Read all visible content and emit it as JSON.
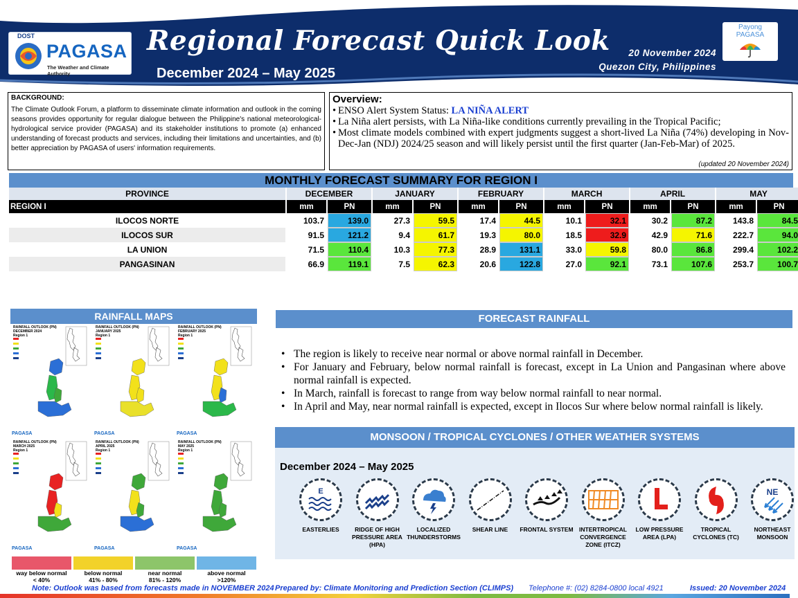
{
  "header": {
    "dost": "DOST",
    "agency": "PAGASA",
    "agency_tagline": "The Weather and Climate Authority",
    "title": "Regional Forecast Quick Look",
    "period": "December 2024 – May 2025",
    "date": "20 November 2024",
    "place": "Quezon City, Philippines",
    "payong_line1": "Payong",
    "payong_line2": "PAGASA"
  },
  "background": {
    "title": "BACKGROUND:",
    "text": "The Climate Outlook Forum, a platform to disseminate climate information and outlook in the coming seasons provides opportunity for regular dialogue between the Philippine's national meteorological-hydrological service provider (PAGASA) and its stakeholder institutions to promote (a) enhanced understanding of forecast products and services, including their limitations and uncertainties, and (b) better appreciation by PAGASA of users' information requirements."
  },
  "overview": {
    "title": "Overview:",
    "enso_label": "ENSO Alert System Status: ",
    "enso_status": "LA NIÑA ALERT",
    "item2": "La Niña alert persists, with La Niña-like conditions currently prevailing in the Tropical Pacific;",
    "item3": "Most climate models combined with expert judgments suggest a short-lived La Niña (74%) developing in Nov-Dec-Jan (NDJ) 2024/25 season and will likely persist until the first quarter (Jan-Feb-Mar) of 2025.",
    "updated": "(updated 20 November 2024)"
  },
  "summary": {
    "title": "MONTHLY FORECAST SUMMARY FOR REGION I",
    "province_header": "PROVINCE",
    "region_label": "REGION I",
    "mm_label": "mm",
    "pn_label": "PN",
    "months": [
      "DECEMBER",
      "JANUARY",
      "FEBRUARY",
      "MARCH",
      "APRIL",
      "MAY"
    ],
    "rows": [
      {
        "province": "ILOCOS NORTE",
        "cells": [
          {
            "mm": "103.7",
            "pn": "139.0",
            "color": "#29a8e0"
          },
          {
            "mm": "27.3",
            "pn": "59.5",
            "color": "#f5f500"
          },
          {
            "mm": "17.4",
            "pn": "44.5",
            "color": "#f5f500"
          },
          {
            "mm": "10.1",
            "pn": "32.1",
            "color": "#ee1c1c"
          },
          {
            "mm": "30.2",
            "pn": "87.2",
            "color": "#5ae63c"
          },
          {
            "mm": "143.8",
            "pn": "84.5",
            "color": "#5ae63c"
          }
        ]
      },
      {
        "province": "ILOCOS SUR",
        "cells": [
          {
            "mm": "91.5",
            "pn": "121.2",
            "color": "#29a8e0"
          },
          {
            "mm": "9.4",
            "pn": "61.7",
            "color": "#f5f500"
          },
          {
            "mm": "19.3",
            "pn": "80.0",
            "color": "#f5f500"
          },
          {
            "mm": "18.5",
            "pn": "32.9",
            "color": "#ee1c1c"
          },
          {
            "mm": "42.9",
            "pn": "71.6",
            "color": "#f5f500"
          },
          {
            "mm": "222.7",
            "pn": "94.0",
            "color": "#5ae63c"
          }
        ]
      },
      {
        "province": "LA UNION",
        "cells": [
          {
            "mm": "71.5",
            "pn": "110.4",
            "color": "#5ae63c"
          },
          {
            "mm": "10.3",
            "pn": "77.3",
            "color": "#f5f500"
          },
          {
            "mm": "28.9",
            "pn": "131.1",
            "color": "#29a8e0"
          },
          {
            "mm": "33.0",
            "pn": "59.8",
            "color": "#f5f500"
          },
          {
            "mm": "80.0",
            "pn": "86.8",
            "color": "#5ae63c"
          },
          {
            "mm": "299.4",
            "pn": "102.2",
            "color": "#5ae63c"
          }
        ]
      },
      {
        "province": "PANGASINAN",
        "cells": [
          {
            "mm": "66.9",
            "pn": "119.1",
            "color": "#5ae63c"
          },
          {
            "mm": "7.5",
            "pn": "62.3",
            "color": "#f5f500"
          },
          {
            "mm": "20.6",
            "pn": "122.8",
            "color": "#29a8e0"
          },
          {
            "mm": "27.0",
            "pn": "92.1",
            "color": "#5ae63c"
          },
          {
            "mm": "73.1",
            "pn": "107.6",
            "color": "#5ae63c"
          },
          {
            "mm": "253.7",
            "pn": "100.7",
            "color": "#5ae63c"
          }
        ]
      }
    ]
  },
  "maps": {
    "title": "RAINFALL MAPS",
    "panels": [
      {
        "title": "RAINFALL OUTLOOK (PN)\nDECEMBER 2024\nRegion 1",
        "palette": [
          "#2b6fd6",
          "#2bb84a",
          "#3fa83a",
          "#2b6fd6"
        ]
      },
      {
        "title": "RAINFALL OUTLOOK (PN)\nJANUARY 2025\nRegion 1",
        "palette": [
          "#f2e11b",
          "#f2e11b",
          "#f2e11b",
          "#e9e02a"
        ]
      },
      {
        "title": "RAINFALL OUTLOOK (PN)\nFEBRUARY 2025\nRegion 1",
        "palette": [
          "#f2e11b",
          "#f2e11b",
          "#2b6fd6",
          "#2bb84a"
        ]
      },
      {
        "title": "RAINFALL OUTLOOK (PN)\nMARCH 2025\nRegion 1",
        "palette": [
          "#e82222",
          "#e82222",
          "#f2e11b",
          "#3fa83a"
        ]
      },
      {
        "title": "RAINFALL OUTLOOK (PN)\nAPRIL 2025\nRegion 1",
        "palette": [
          "#3fa83a",
          "#f2e11b",
          "#3fa83a",
          "#2b6fd6"
        ]
      },
      {
        "title": "RAINFALL OUTLOOK (PN)\nMAY 2025\nRegion 1",
        "palette": [
          "#3fa83a",
          "#3fa83a",
          "#3fa83a",
          "#3fa83a"
        ]
      }
    ],
    "pagasa_label": "PAGASA",
    "legend": [
      {
        "label": "way below normal",
        "range": "< 40%",
        "color": "#e8576a"
      },
      {
        "label": "below normal",
        "range": "41%  -  80%",
        "color": "#f2d22a"
      },
      {
        "label": "near normal",
        "range": "81% - 120%",
        "color": "#8dc56a"
      },
      {
        "label": "above normal",
        "range": ">120%",
        "color": "#6fb5e6"
      }
    ]
  },
  "forecast": {
    "title": "FORECAST RAINFALL",
    "items": [
      "The region is likely to receive near normal or above normal rainfall in December.",
      "For January and February, below normal rainfall is forecast, except in La Union and Pangasinan where above normal rainfall is expected.",
      "In March, rainfall is forecast to range from way below normal rainfall to near normal.",
      "In April and May, near normal rainfall is expected, except in Ilocos Sur where below normal rainfall is likely."
    ]
  },
  "systems": {
    "title": "MONSOON / TROPICAL CYCLONES / OTHER WEATHER SYSTEMS",
    "period": "December 2024 – May 2025",
    "items": [
      {
        "label": "EASTERLIES",
        "icon": "easterlies-icon"
      },
      {
        "label": "RIDGE OF HIGH PRESSURE AREA (HPA)",
        "icon": "ridge-icon"
      },
      {
        "label": "LOCALIZED THUNDERSTORMS",
        "icon": "thunderstorm-icon"
      },
      {
        "label": "SHEAR LINE",
        "icon": "shear-line-icon"
      },
      {
        "label": "FRONTAL SYSTEM",
        "icon": "frontal-system-icon"
      },
      {
        "label": "INTERTROPICAL CONVERGENCE ZONE (ITCZ)",
        "icon": "itcz-icon"
      },
      {
        "label": "LOW PRESSURE AREA (LPA)",
        "icon": "lpa-icon"
      },
      {
        "label": "TROPICAL CYCLONES (TC)",
        "icon": "tropical-cyclone-icon"
      },
      {
        "label": "NORTHEAST MONSOON",
        "icon": "northeast-monsoon-icon"
      }
    ],
    "easterlies_letter": "E",
    "ne_letters": "NE"
  },
  "footer": {
    "note": "Note: Outlook was based from forecasts made in NOVEMBER 2024",
    "prepared": "Prepared by: Climate Monitoring and Prediction Section (CLIMPS)",
    "telephone": "Telephone #: (02) 8284-0800 local 4921",
    "issued": "Issued: 20 November 2024"
  }
}
